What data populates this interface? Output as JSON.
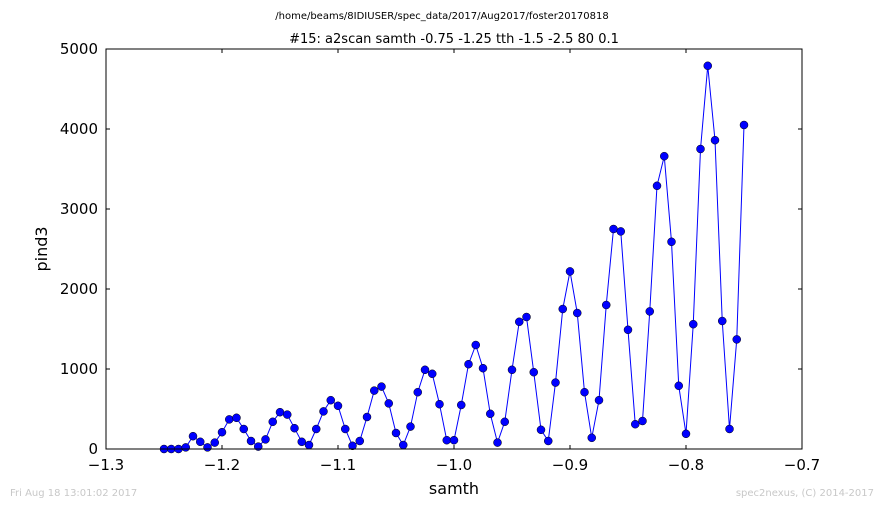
{
  "figure": {
    "suptitle": "/home/beams/8IDIUSER/spec_data/2017/Aug2017/foster20170818",
    "footer_left": "Fri Aug 18 13:01:02 2017",
    "footer_right": "spec2nexus, (C) 2014-2017"
  },
  "chart_data": {
    "type": "line",
    "title": "#15: a2scan  samth -0.75 -1.25  tth -1.5 -2.5  80 0.1",
    "xlabel": "samth",
    "ylabel": "pind3",
    "xlim": [
      -1.3,
      -0.7
    ],
    "ylim": [
      0,
      5000
    ],
    "xticks": [
      -1.3,
      -1.2,
      -1.1,
      -1.0,
      -0.9,
      -0.8,
      -0.7
    ],
    "xtick_labels": [
      "−1.3",
      "−1.2",
      "−1.1",
      "−1.0",
      "−0.9",
      "−0.8",
      "−0.7"
    ],
    "yticks": [
      0,
      1000,
      2000,
      3000,
      4000,
      5000
    ],
    "ytick_labels": [
      "0",
      "1000",
      "2000",
      "3000",
      "4000",
      "5000"
    ],
    "grid": false,
    "color": "#0000ff",
    "series": [
      {
        "marker": "circle",
        "x": [
          -1.25,
          -1.24375,
          -1.2375,
          -1.23125,
          -1.225,
          -1.21875,
          -1.2125,
          -1.20625,
          -1.2,
          -1.19375,
          -1.1875,
          -1.18125,
          -1.175,
          -1.16875,
          -1.1625,
          -1.15625,
          -1.15,
          -1.14375,
          -1.1375,
          -1.13125,
          -1.125,
          -1.11875,
          -1.1125,
          -1.10625,
          -1.1,
          -1.09375,
          -1.0875,
          -1.08125,
          -1.075,
          -1.06875,
          -1.0625,
          -1.05625,
          -1.05,
          -1.04375,
          -1.0375,
          -1.03125,
          -1.025,
          -1.01875,
          -1.0125,
          -1.00625,
          -1.0,
          -0.99375,
          -0.9875,
          -0.98125,
          -0.975,
          -0.96875,
          -0.9625,
          -0.95625,
          -0.95,
          -0.94375,
          -0.9375,
          -0.93125,
          -0.925,
          -0.91875,
          -0.9125,
          -0.90625,
          -0.9,
          -0.89375,
          -0.8875,
          -0.88125,
          -0.875,
          -0.86875,
          -0.8625,
          -0.85625,
          -0.85,
          -0.84375,
          -0.8375,
          -0.83125,
          -0.825,
          -0.81875,
          -0.8125,
          -0.80625,
          -0.8,
          -0.79375,
          -0.7875,
          -0.78125,
          -0.775,
          -0.76875,
          -0.7625,
          -0.75625,
          -0.75
        ],
        "y": [
          0,
          0,
          0,
          20,
          160,
          90,
          20,
          80,
          210,
          370,
          390,
          250,
          100,
          30,
          120,
          340,
          460,
          430,
          260,
          90,
          50,
          250,
          470,
          610,
          540,
          250,
          40,
          100,
          400,
          730,
          780,
          570,
          200,
          50,
          280,
          710,
          990,
          940,
          560,
          110,
          110,
          550,
          1060,
          1300,
          1010,
          440,
          80,
          340,
          990,
          1590,
          1650,
          960,
          240,
          100,
          830,
          1750,
          2220,
          1700,
          710,
          140,
          610,
          1800,
          2750,
          2720,
          1490,
          310,
          350,
          1720,
          3290,
          3660,
          2590,
          790,
          190,
          1560,
          3750,
          4790,
          3860,
          1600,
          250,
          1370,
          4050
        ]
      }
    ]
  }
}
